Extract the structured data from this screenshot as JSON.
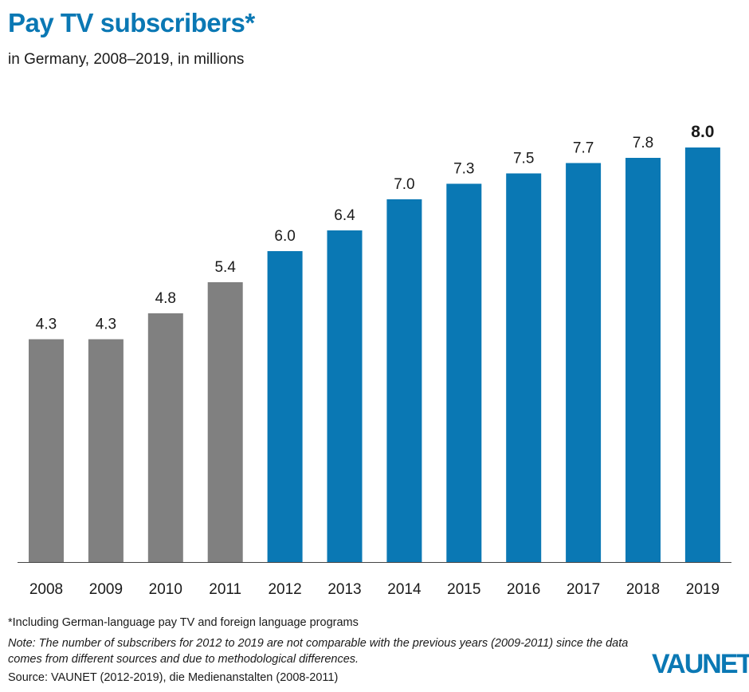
{
  "header": {
    "title": "Pay TV subscribers*",
    "subtitle": "in Germany, 2008–2019, in millions"
  },
  "chart_data": {
    "type": "bar",
    "categories": [
      "2008",
      "2009",
      "2010",
      "2011",
      "2012",
      "2013",
      "2014",
      "2015",
      "2016",
      "2017",
      "2018",
      "2019"
    ],
    "values": [
      4.3,
      4.3,
      4.8,
      5.4,
      6.0,
      6.4,
      7.0,
      7.3,
      7.5,
      7.7,
      7.8,
      8.0
    ],
    "value_labels": [
      "4.3",
      "4.3",
      "4.8",
      "5.4",
      "6.0",
      "6.4",
      "7.0",
      "7.3",
      "7.5",
      "7.7",
      "7.8",
      "8.0"
    ],
    "bar_colors": [
      "#808080",
      "#808080",
      "#808080",
      "#808080",
      "#0a78b4",
      "#0a78b4",
      "#0a78b4",
      "#0a78b4",
      "#0a78b4",
      "#0a78b4",
      "#0a78b4",
      "#0a78b4"
    ],
    "highlight_last_label": true,
    "ylim": [
      0,
      8
    ],
    "grid": false,
    "title": "Pay TV subscribers*",
    "subtitle": "in Germany, 2008–2019, in millions",
    "xlabel": "",
    "ylabel": ""
  },
  "footer": {
    "footnote": "*Including German-language pay TV and foreign language programs",
    "note": "Note: The number of subscribers for 2012 to 2019 are not comparable with the previous years (2009-2011) since the data comes from different sources and due to methodological differences.",
    "source": "Source: VAUNET (2012-2019), die Medienanstalten (2008-2011)",
    "logo_text": "VAUNET"
  }
}
